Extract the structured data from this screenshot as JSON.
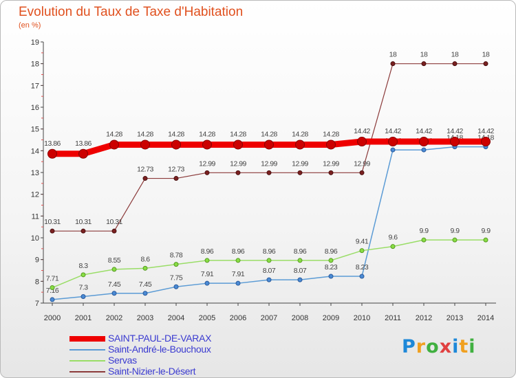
{
  "chart_data": {
    "type": "line",
    "title": "Evolution du Taux de Taxe d'Habitation",
    "subtitle": "(en %)",
    "x": [
      "2000",
      "2001",
      "2002",
      "2003",
      "2004",
      "2005",
      "2006",
      "2007",
      "2008",
      "2009",
      "2010",
      "2011",
      "2012",
      "2013",
      "2014"
    ],
    "ylim": [
      7,
      19
    ],
    "yticks": [
      "7",
      "8",
      "9",
      "10",
      "11",
      "12",
      "13",
      "14",
      "15",
      "16",
      "17",
      "18",
      "19"
    ],
    "grid": false,
    "legend_position": "bottom-left",
    "series": [
      {
        "name": "SAINT-PAUL-DE-VARAX",
        "color": "#ee0000",
        "values": [
          13.86,
          13.86,
          14.28,
          14.28,
          14.28,
          14.28,
          14.28,
          14.28,
          14.28,
          14.28,
          14.42,
          14.42,
          14.42,
          14.42,
          14.42
        ],
        "labels": [
          "13.86",
          "13.86",
          "14.28",
          "14.28",
          "14.28",
          "14.28",
          "14.28",
          "14.28",
          "14.28",
          "14.28",
          "14.42",
          "14.42",
          "14.42",
          "14.42",
          "14.42"
        ]
      },
      {
        "name": "Saint-André-le-Bouchoux",
        "color": "#5b9bd5",
        "values": [
          7.16,
          7.3,
          7.45,
          7.45,
          7.75,
          7.91,
          7.91,
          8.07,
          8.07,
          8.23,
          8.23,
          14.04,
          14.04,
          14.18,
          14.18
        ],
        "labels": [
          "7.16",
          "7.3",
          "7.45",
          "7.45",
          "7.75",
          "7.91",
          "7.91",
          "8.07",
          "8.07",
          "8.23",
          "8.23",
          "14.04",
          "14.04",
          "14.18",
          "14.18"
        ]
      },
      {
        "name": "Servas",
        "color": "#99dd66",
        "values": [
          7.71,
          8.3,
          8.55,
          8.6,
          8.78,
          8.96,
          8.96,
          8.96,
          8.96,
          8.96,
          9.41,
          9.6,
          9.9,
          9.9,
          9.9
        ],
        "labels": [
          "7.71",
          "8.3",
          "8.55",
          "8.6",
          "8.78",
          "8.96",
          "8.96",
          "8.96",
          "8.96",
          "8.96",
          "9.41",
          "9.6",
          "9.9",
          "9.9",
          "9.9"
        ]
      },
      {
        "name": "Saint-Nizier-le-Désert",
        "color": "#8b3a3a",
        "values": [
          10.31,
          10.31,
          10.31,
          12.73,
          12.73,
          12.99,
          12.99,
          12.99,
          12.99,
          12.99,
          12.99,
          18,
          18,
          18,
          18
        ],
        "labels": [
          "10.31",
          "10.31",
          "10.31",
          "12.73",
          "12.73",
          "12.99",
          "12.99",
          "12.99",
          "12.99",
          "12.99",
          "12.99",
          "18",
          "18",
          "18",
          "18"
        ]
      }
    ]
  },
  "logo": {
    "letters": [
      "P",
      "r",
      "o",
      "x",
      "i",
      "t",
      "i"
    ],
    "colors": [
      "#1e88d8",
      "#f0a020",
      "#40b040",
      "#e04040",
      "#1e88d8",
      "#f0a020",
      "#40b040"
    ]
  }
}
